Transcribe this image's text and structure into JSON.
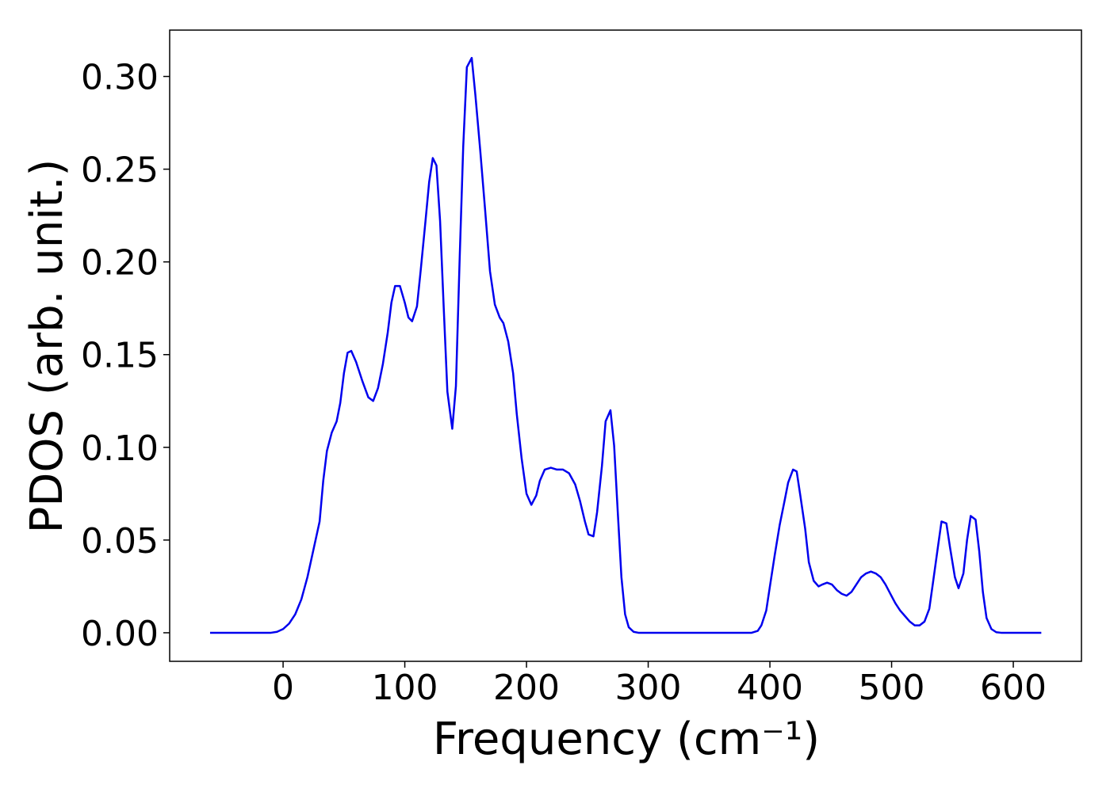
{
  "chart_data": {
    "type": "line",
    "xlabel": "Frequency (cm⁻¹)",
    "ylabel": "PDOS (arb. unit.)",
    "xlim": [
      -93.2,
      656
    ],
    "ylim": [
      -0.0154,
      0.325
    ],
    "xticks": [
      0,
      100,
      200,
      300,
      400,
      500,
      600
    ],
    "yticks": [
      {
        "value": 0,
        "label": "0.00"
      },
      {
        "value": 0.05,
        "label": "0.05"
      },
      {
        "value": 0.1,
        "label": "0.10"
      },
      {
        "value": 0.15,
        "label": "0.15"
      },
      {
        "value": 0.2,
        "label": "0.20"
      },
      {
        "value": 0.25,
        "label": "0.25"
      },
      {
        "value": 0.3,
        "label": "0.30"
      }
    ],
    "series": [
      {
        "color": "#0000ee",
        "x": [
          -60,
          -10,
          -5,
          0,
          5,
          10,
          15,
          20,
          25,
          30,
          33,
          36,
          40,
          44,
          47,
          50,
          53,
          56,
          60,
          65,
          70,
          74,
          78,
          82,
          86,
          89,
          92,
          96,
          100,
          103,
          106,
          110,
          113,
          117,
          120,
          123,
          126,
          129,
          132,
          135,
          139,
          142,
          145,
          148,
          151,
          155,
          158,
          162,
          166,
          170,
          174,
          178,
          181,
          185,
          189,
          192,
          196,
          200,
          204,
          208,
          211,
          215,
          220,
          225,
          230,
          235,
          240,
          244,
          248,
          251,
          255,
          258,
          262,
          265,
          269,
          272,
          275,
          278,
          281,
          284,
          288,
          292,
          385,
          390,
          393,
          397,
          400,
          404,
          408,
          412,
          415,
          419,
          422,
          425,
          429,
          432,
          436,
          440,
          443,
          447,
          451,
          455,
          459,
          463,
          467,
          471,
          475,
          479,
          483,
          487,
          491,
          495,
          499,
          503,
          507,
          511,
          515,
          519,
          523,
          527,
          531,
          534,
          538,
          541,
          545,
          548,
          552,
          555,
          559,
          562,
          565,
          569,
          572,
          575,
          578,
          582,
          586,
          590,
          623
        ],
        "values": [
          0,
          0,
          0.0005,
          0.002,
          0.005,
          0.01,
          0.018,
          0.03,
          0.045,
          0.06,
          0.082,
          0.098,
          0.108,
          0.114,
          0.124,
          0.14,
          0.151,
          0.152,
          0.146,
          0.136,
          0.127,
          0.125,
          0.132,
          0.145,
          0.162,
          0.178,
          0.187,
          0.187,
          0.178,
          0.17,
          0.168,
          0.176,
          0.195,
          0.222,
          0.243,
          0.256,
          0.252,
          0.222,
          0.175,
          0.13,
          0.11,
          0.133,
          0.2,
          0.262,
          0.305,
          0.31,
          0.29,
          0.26,
          0.228,
          0.195,
          0.177,
          0.17,
          0.167,
          0.157,
          0.14,
          0.118,
          0.094,
          0.075,
          0.069,
          0.074,
          0.082,
          0.088,
          0.089,
          0.088,
          0.088,
          0.086,
          0.08,
          0.071,
          0.06,
          0.053,
          0.052,
          0.065,
          0.09,
          0.114,
          0.12,
          0.101,
          0.065,
          0.03,
          0.01,
          0.003,
          0.0005,
          0,
          0,
          0.001,
          0.004,
          0.012,
          0.025,
          0.042,
          0.058,
          0.071,
          0.081,
          0.088,
          0.087,
          0.074,
          0.056,
          0.038,
          0.028,
          0.025,
          0.026,
          0.027,
          0.026,
          0.023,
          0.021,
          0.02,
          0.022,
          0.026,
          0.03,
          0.032,
          0.033,
          0.032,
          0.03,
          0.026,
          0.021,
          0.016,
          0.012,
          0.009,
          0.006,
          0.004,
          0.004,
          0.006,
          0.013,
          0.027,
          0.046,
          0.06,
          0.059,
          0.046,
          0.03,
          0.024,
          0.032,
          0.05,
          0.063,
          0.061,
          0.044,
          0.022,
          0.008,
          0.002,
          0.0003,
          0,
          0
        ]
      }
    ]
  }
}
